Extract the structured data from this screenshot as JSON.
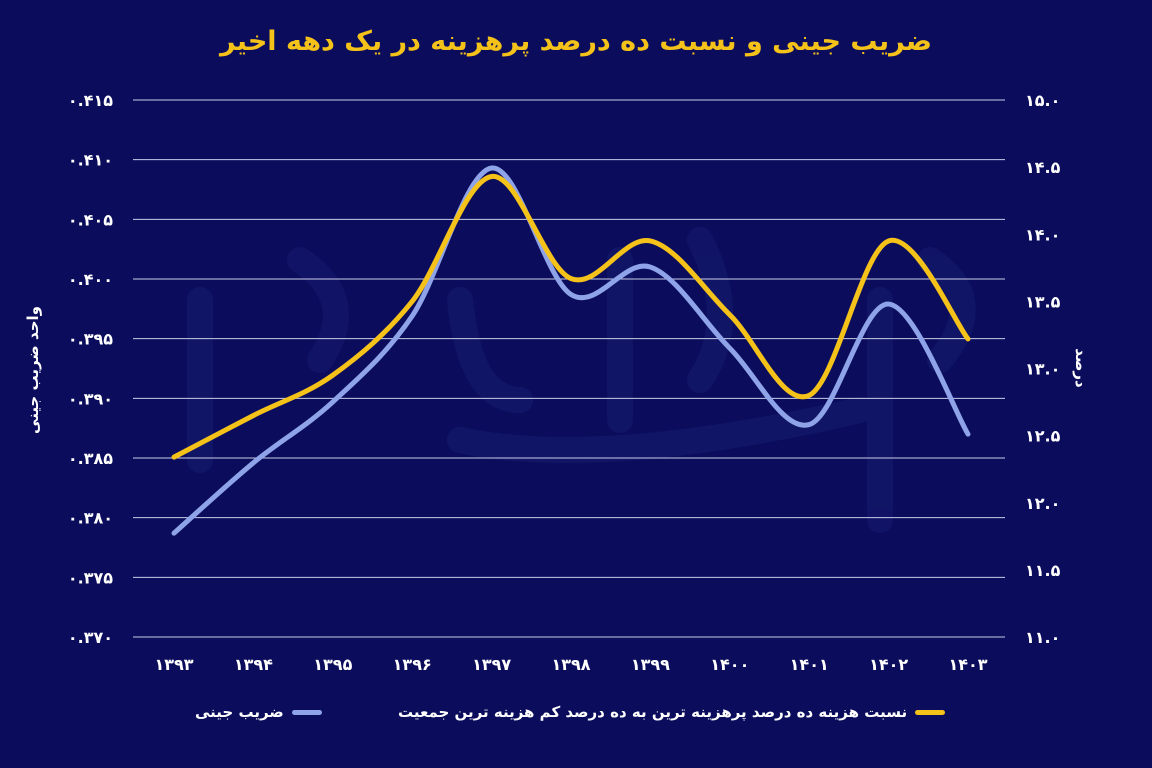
{
  "chart_data": {
    "type": "line",
    "title": "ضریب جینی و نسبت ده درصد پرهزینه در یک دهه اخیر",
    "categories": [
      "۱۳۹۳",
      "۱۳۹۴",
      "۱۳۹۵",
      "۱۳۹۶",
      "۱۳۹۷",
      "۱۳۹۸",
      "۱۳۹۹",
      "۱۴۰۰",
      "۱۴۰۱",
      "۱۴۰۲",
      "۱۴۰۳"
    ],
    "y_left": {
      "label": "واحد ضریب جینی",
      "ylim": [
        0.37,
        0.415
      ],
      "ticks": [
        "۰.۴۱۵",
        "۰.۴۱۰",
        "۰.۴۰۵",
        "۰.۴۰۰",
        "۰.۳۹۵",
        "۰.۳۹۰",
        "۰.۳۸۵",
        "۰.۳۸۰",
        "۰.۳۷۵",
        "۰.۳۷۰"
      ]
    },
    "y_right": {
      "label": "درصد",
      "ylim": [
        11.0,
        15.0
      ],
      "ticks": [
        "۱۵.۰",
        "۱۴.۵",
        "۱۴.۰",
        "۱۳.۵",
        "۱۳.۰",
        "۱۲.۵",
        "۱۲.۰",
        "۱۱.۵",
        "۱۱.۰"
      ]
    },
    "grid": true,
    "legend_position": "bottom",
    "series": [
      {
        "name": "ضریب جینی",
        "axis": "left",
        "color": "#8fa3e8",
        "values": [
          0.3787,
          0.3846,
          0.3897,
          0.3969,
          0.4093,
          0.3987,
          0.401,
          0.3942,
          0.3878,
          0.3979,
          0.387
        ]
      },
      {
        "name": "نسبت هزینه ده درصد پرهزینه ترین به ده درصد کم هزینه ترین جمعیت",
        "axis": "right",
        "color": "#f5c21a",
        "values": [
          12.34,
          12.65,
          12.95,
          13.5,
          14.43,
          13.67,
          13.95,
          13.4,
          12.8,
          13.95,
          13.22
        ]
      }
    ]
  }
}
